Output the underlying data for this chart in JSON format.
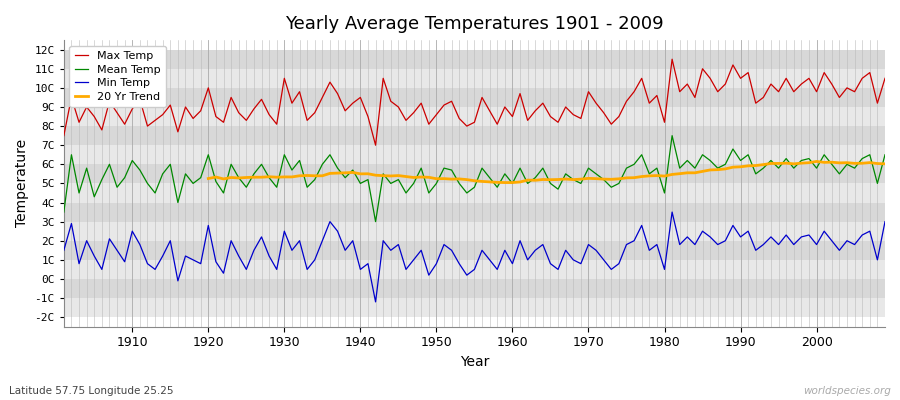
{
  "title": "Yearly Average Temperatures 1901 - 2009",
  "xlabel": "Year",
  "ylabel": "Temperature",
  "lat_lon_label": "Latitude 57.75 Longitude 25.25",
  "watermark": "worldspecies.org",
  "year_start": 1901,
  "year_end": 2009,
  "colors": {
    "max_temp": "#cc0000",
    "mean_temp": "#008800",
    "min_temp": "#0000cc",
    "trend": "#ffaa00",
    "background": "#ffffff",
    "plot_bg": "#ffffff",
    "band_light": "#e8e8e8",
    "band_dark": "#d8d8d8",
    "grid_minor": "#cccccc"
  },
  "legend_labels": [
    "Max Temp",
    "Mean Temp",
    "Min Temp",
    "20 Yr Trend"
  ],
  "ylim": [
    -2.5,
    12.5
  ],
  "yticks": [
    -2,
    -1,
    0,
    1,
    2,
    3,
    4,
    5,
    6,
    7,
    8,
    9,
    10,
    11,
    12
  ],
  "ytick_labels": [
    "-2C",
    "-1C",
    "0C",
    "1C",
    "2C",
    "3C",
    "4C",
    "5C",
    "6C",
    "7C",
    "8C",
    "9C",
    "10C",
    "11C",
    "12C"
  ],
  "max_temp": [
    7.5,
    9.5,
    8.2,
    9.0,
    8.5,
    7.8,
    9.3,
    8.7,
    8.1,
    8.9,
    9.4,
    8.0,
    8.3,
    8.6,
    9.1,
    7.7,
    9.0,
    8.4,
    8.8,
    10.0,
    8.5,
    8.2,
    9.5,
    8.7,
    8.3,
    8.9,
    9.4,
    8.6,
    8.1,
    10.5,
    9.2,
    9.8,
    8.3,
    8.7,
    9.5,
    10.3,
    9.7,
    8.8,
    9.2,
    9.5,
    8.5,
    7.0,
    10.5,
    9.3,
    9.0,
    8.3,
    8.7,
    9.2,
    8.1,
    8.6,
    9.1,
    9.3,
    8.4,
    8.0,
    8.2,
    9.5,
    8.8,
    8.1,
    9.0,
    8.5,
    9.7,
    8.3,
    8.8,
    9.2,
    8.5,
    8.2,
    9.0,
    8.6,
    8.4,
    9.8,
    9.2,
    8.7,
    8.1,
    8.5,
    9.3,
    9.8,
    10.5,
    9.2,
    9.6,
    8.2,
    11.5,
    9.8,
    10.2,
    9.5,
    11.0,
    10.5,
    9.8,
    10.2,
    11.2,
    10.5,
    10.8,
    9.2,
    9.5,
    10.2,
    9.8,
    10.5,
    9.8,
    10.2,
    10.5,
    9.8,
    10.8,
    10.2,
    9.5,
    10.0,
    9.8,
    10.5,
    10.8,
    9.2,
    10.5
  ],
  "mean_temp": [
    3.5,
    6.5,
    4.5,
    5.8,
    4.3,
    5.2,
    6.0,
    4.8,
    5.3,
    6.2,
    5.7,
    5.0,
    4.5,
    5.5,
    6.0,
    4.0,
    5.5,
    5.0,
    5.3,
    6.5,
    5.1,
    4.5,
    6.0,
    5.3,
    4.8,
    5.5,
    6.0,
    5.3,
    4.8,
    6.5,
    5.7,
    6.2,
    4.8,
    5.2,
    6.0,
    6.5,
    5.8,
    5.3,
    5.7,
    5.0,
    5.2,
    3.0,
    5.5,
    5.0,
    5.2,
    4.5,
    5.0,
    5.8,
    4.5,
    5.0,
    5.8,
    5.7,
    5.0,
    4.5,
    4.8,
    5.8,
    5.3,
    4.8,
    5.5,
    5.0,
    5.8,
    5.0,
    5.3,
    5.8,
    5.0,
    4.7,
    5.5,
    5.2,
    5.0,
    5.8,
    5.5,
    5.2,
    4.8,
    5.0,
    5.8,
    6.0,
    6.5,
    5.5,
    5.8,
    4.5,
    7.5,
    5.8,
    6.2,
    5.8,
    6.5,
    6.2,
    5.8,
    6.0,
    6.8,
    6.2,
    6.5,
    5.5,
    5.8,
    6.2,
    5.8,
    6.3,
    5.8,
    6.2,
    6.3,
    5.8,
    6.5,
    6.0,
    5.5,
    6.0,
    5.8,
    6.3,
    6.5,
    5.0,
    6.5
  ],
  "min_temp": [
    1.5,
    2.9,
    0.8,
    2.0,
    1.2,
    0.5,
    2.1,
    1.5,
    0.9,
    2.5,
    1.8,
    0.8,
    0.5,
    1.2,
    2.0,
    -0.1,
    1.2,
    1.0,
    0.8,
    2.8,
    0.9,
    0.3,
    2.0,
    1.2,
    0.5,
    1.5,
    2.2,
    1.2,
    0.5,
    2.5,
    1.5,
    2.0,
    0.5,
    1.0,
    2.0,
    3.0,
    2.5,
    1.5,
    2.0,
    0.5,
    0.8,
    -1.2,
    2.0,
    1.5,
    1.8,
    0.5,
    1.0,
    1.5,
    0.2,
    0.8,
    1.8,
    1.5,
    0.8,
    0.2,
    0.5,
    1.5,
    1.0,
    0.5,
    1.5,
    0.8,
    2.0,
    1.0,
    1.5,
    1.8,
    0.8,
    0.5,
    1.5,
    1.0,
    0.8,
    1.8,
    1.5,
    1.0,
    0.5,
    0.8,
    1.8,
    2.0,
    2.8,
    1.5,
    1.8,
    0.5,
    3.5,
    1.8,
    2.2,
    1.8,
    2.5,
    2.2,
    1.8,
    2.0,
    2.8,
    2.2,
    2.5,
    1.5,
    1.8,
    2.2,
    1.8,
    2.3,
    1.8,
    2.2,
    2.3,
    1.8,
    2.5,
    2.0,
    1.5,
    2.0,
    1.8,
    2.3,
    2.5,
    1.0,
    3.0
  ]
}
